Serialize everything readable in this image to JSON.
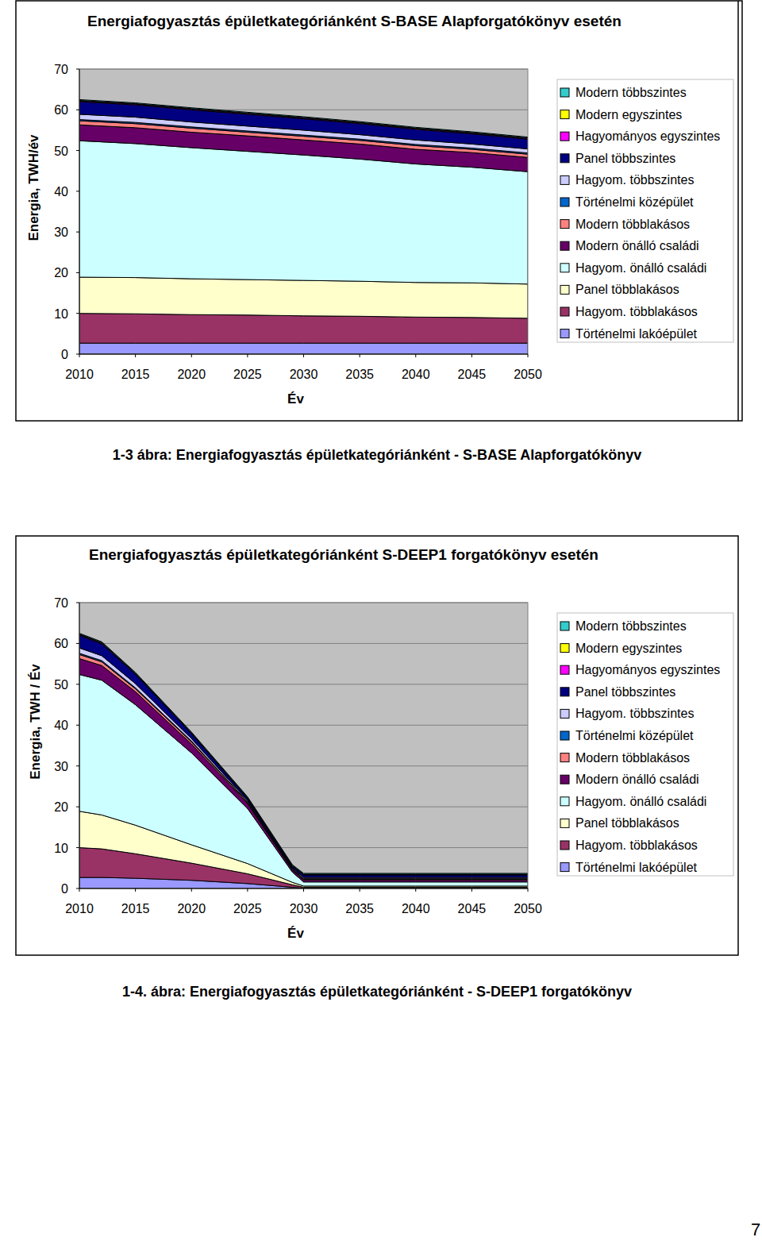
{
  "chart_data": [
    {
      "type": "area",
      "stacked": true,
      "grid": true,
      "legend": "right",
      "title": "Energiafogyasztás épületkategóriánként S-BASE Alapforgatókönyv esetén",
      "x_label": "Év",
      "y_label": "Energia, TWH/év",
      "x": [
        2010,
        2015,
        2020,
        2025,
        2030,
        2035,
        2040,
        2045,
        2050
      ],
      "xlim": [
        2010,
        2050
      ],
      "xticks": [
        2010,
        2015,
        2020,
        2025,
        2030,
        2035,
        2040,
        2045,
        2050
      ],
      "ylim": [
        0,
        70
      ],
      "yticks": [
        0,
        10,
        20,
        30,
        40,
        50,
        60,
        70
      ],
      "series": [
        {
          "name": "Modern többszintes",
          "color": "#33cccc",
          "values": [
            0.2,
            0.2,
            0.2,
            0.2,
            0.2,
            0.2,
            0.2,
            0.2,
            0.2
          ]
        },
        {
          "name": "Modern egyszintes",
          "color": "#ffff00",
          "values": [
            0.1,
            0.1,
            0.1,
            0.1,
            0.1,
            0.1,
            0.1,
            0.1,
            0.1
          ]
        },
        {
          "name": "Hagyományos egyszintes",
          "color": "#ff00ff",
          "values": [
            0.2,
            0.2,
            0.2,
            0.2,
            0.2,
            0.2,
            0.2,
            0.2,
            0.2
          ]
        },
        {
          "name": "Panel többszintes",
          "color": "#000080",
          "values": [
            3.1,
            3.0,
            3.0,
            2.9,
            2.8,
            2.7,
            2.6,
            2.5,
            2.4
          ]
        },
        {
          "name": "Hagyom. többszintes",
          "color": "#ccccff",
          "values": [
            1.3,
            1.3,
            1.2,
            1.2,
            1.2,
            1.1,
            1.1,
            1.0,
            1.0
          ]
        },
        {
          "name": "Történelmi középület",
          "color": "#0066cc",
          "values": [
            0.3,
            0.3,
            0.3,
            0.3,
            0.3,
            0.3,
            0.3,
            0.3,
            0.3
          ]
        },
        {
          "name": "Modern többlakásos",
          "color": "#ff8080",
          "values": [
            1.0,
            1.0,
            1.0,
            0.9,
            0.9,
            0.9,
            0.9,
            0.8,
            0.8
          ]
        },
        {
          "name": "Modern önálló családi",
          "color": "#660066",
          "values": [
            3.9,
            3.9,
            3.8,
            3.8,
            3.7,
            3.7,
            3.6,
            3.6,
            3.5
          ]
        },
        {
          "name": "Hagyom. önálló családi",
          "color": "#ccffff",
          "values": [
            33.5,
            32.9,
            32.2,
            31.5,
            30.8,
            30.0,
            29.1,
            28.4,
            27.6
          ]
        },
        {
          "name": "Panel többlakásos",
          "color": "#ffffcc",
          "values": [
            8.9,
            8.9,
            8.8,
            8.7,
            8.7,
            8.6,
            8.5,
            8.5,
            8.4
          ]
        },
        {
          "name": "Hagyom. többlakásos",
          "color": "#993366",
          "values": [
            7.3,
            7.2,
            7.0,
            6.9,
            6.7,
            6.6,
            6.4,
            6.3,
            6.1
          ]
        },
        {
          "name": "Történelmi lakóépület",
          "color": "#9999ff",
          "values": [
            2.7,
            2.7,
            2.7,
            2.7,
            2.7,
            2.7,
            2.7,
            2.7,
            2.7
          ]
        }
      ]
    },
    {
      "type": "area",
      "stacked": true,
      "grid": true,
      "legend": "right",
      "title": "Energiafogyasztás épületkategóriánként  S-DEEP1 forgatókönyv esetén",
      "x_label": "Év",
      "y_label": "Energia, TWH / Év",
      "x": [
        2010,
        2012,
        2015,
        2020,
        2025,
        2029,
        2030,
        2035,
        2040,
        2045,
        2050
      ],
      "xlim": [
        2010,
        2050
      ],
      "xticks": [
        2010,
        2015,
        2020,
        2025,
        2030,
        2035,
        2040,
        2045,
        2050
      ],
      "ylim": [
        0,
        70
      ],
      "yticks": [
        0,
        10,
        20,
        30,
        40,
        50,
        60,
        70
      ],
      "series": [
        {
          "name": "Modern többszintes",
          "color": "#33cccc",
          "values": [
            0.2,
            0.2,
            0.2,
            0.2,
            0.2,
            0.2,
            0.2,
            0.2,
            0.2,
            0.2,
            0.2
          ]
        },
        {
          "name": "Modern egyszintes",
          "color": "#ffff00",
          "values": [
            0.1,
            0.1,
            0.1,
            0.1,
            0.1,
            0.1,
            0.1,
            0.1,
            0.1,
            0.1,
            0.1
          ]
        },
        {
          "name": "Hagyományos egyszintes",
          "color": "#ff00ff",
          "values": [
            0.2,
            0.2,
            0.15,
            0.1,
            0.1,
            0.1,
            0.1,
            0.1,
            0.1,
            0.1,
            0.1
          ]
        },
        {
          "name": "Panel többszintes",
          "color": "#000080",
          "values": [
            3.1,
            2.9,
            2.3,
            1.2,
            0.5,
            0.4,
            0.6,
            0.6,
            0.6,
            0.6,
            0.6
          ]
        },
        {
          "name": "Hagyom. többszintes",
          "color": "#ccccff",
          "values": [
            1.3,
            1.2,
            1.0,
            0.6,
            0.3,
            0.2,
            0.3,
            0.3,
            0.3,
            0.3,
            0.3
          ]
        },
        {
          "name": "Történelmi középület",
          "color": "#0066cc",
          "values": [
            0.3,
            0.3,
            0.25,
            0.2,
            0.15,
            0.1,
            0.1,
            0.1,
            0.1,
            0.1,
            0.1
          ]
        },
        {
          "name": "Modern többlakásos",
          "color": "#ff8080",
          "values": [
            1.0,
            0.9,
            0.7,
            0.5,
            0.3,
            0.2,
            0.2,
            0.2,
            0.2,
            0.2,
            0.2
          ]
        },
        {
          "name": "Modern önálló családi",
          "color": "#660066",
          "values": [
            3.9,
            3.6,
            3.2,
            2.2,
            1.2,
            0.5,
            0.5,
            0.5,
            0.5,
            0.5,
            0.5
          ]
        },
        {
          "name": "Hagyom. önálló családi",
          "color": "#ccffff",
          "values": [
            33.5,
            33.0,
            29.5,
            22.5,
            13.5,
            2.5,
            1.0,
            1.0,
            1.0,
            1.0,
            1.0
          ]
        },
        {
          "name": "Panel többlakásos",
          "color": "#ffffcc",
          "values": [
            8.9,
            8.3,
            7.0,
            4.5,
            2.5,
            0.6,
            0.3,
            0.3,
            0.3,
            0.3,
            0.3
          ]
        },
        {
          "name": "Hagyom. többlakásos",
          "color": "#993366",
          "values": [
            7.3,
            7.0,
            6.0,
            4.2,
            2.4,
            0.6,
            0.2,
            0.2,
            0.2,
            0.2,
            0.2
          ]
        },
        {
          "name": "Történelmi lakóépület",
          "color": "#9999ff",
          "values": [
            2.7,
            2.7,
            2.5,
            2.0,
            1.2,
            0.3,
            0.1,
            0.1,
            0.1,
            0.1,
            0.1
          ]
        }
      ]
    }
  ],
  "captions": [
    "1-3 ábra: Energiafogyasztás épületkategóriánként - S-BASE Alapforgatókönyv",
    "1-4. ábra: Energiafogyasztás épületkategóriánként - S-DEEP1 forgatókönyv"
  ],
  "page_number": "7"
}
